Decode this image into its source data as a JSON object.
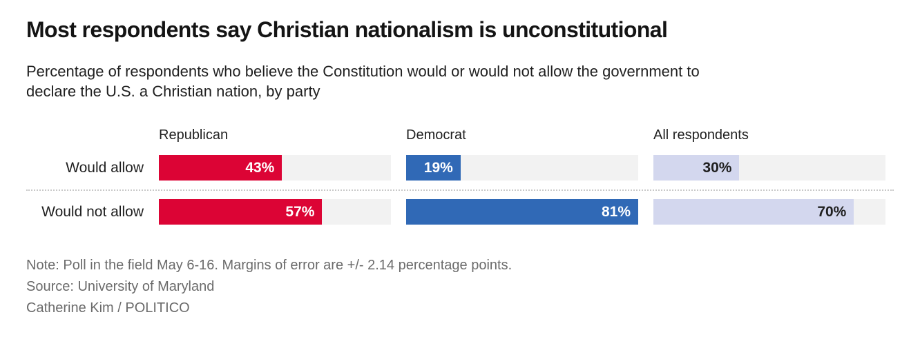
{
  "header": {
    "title": "Most respondents say Christian nationalism is unconstitutional",
    "subtitle_lines": [
      "Percentage of respondents who believe the Constitution would or would not allow the government to",
      "declare the U.S. a Christian nation, by party"
    ]
  },
  "chart_data": {
    "type": "bar",
    "orientation": "horizontal",
    "title": "Most respondents say Christian nationalism is unconstitutional",
    "subtitle": "Percentage of respondents who believe the Constitution would or would not allow the government to declare the U.S. a Christian nation, by party",
    "categories": [
      "Would allow",
      "Would not allow"
    ],
    "series": [
      {
        "name": "Republican",
        "values": [
          43,
          57
        ],
        "color": "#dc0435",
        "label_color": "#ffffff"
      },
      {
        "name": "Democrat",
        "values": [
          19,
          81
        ],
        "color": "#3069b6",
        "label_color": "#ffffff"
      },
      {
        "name": "All respondents",
        "values": [
          30,
          70
        ],
        "color": "#d3d7ee",
        "label_color": "#1f1f1f"
      }
    ],
    "value_suffix": "%",
    "xlim": [
      0,
      81
    ],
    "track_color": "#f2f2f2",
    "grid": false,
    "legend_position": "column-headers-above-bars"
  },
  "footer": {
    "note": "Note: Poll in the field May 6-16. Margins of error are +/- 2.14 percentage points.",
    "source": "Source: University of Maryland",
    "byline": "Catherine Kim / POLITICO"
  }
}
